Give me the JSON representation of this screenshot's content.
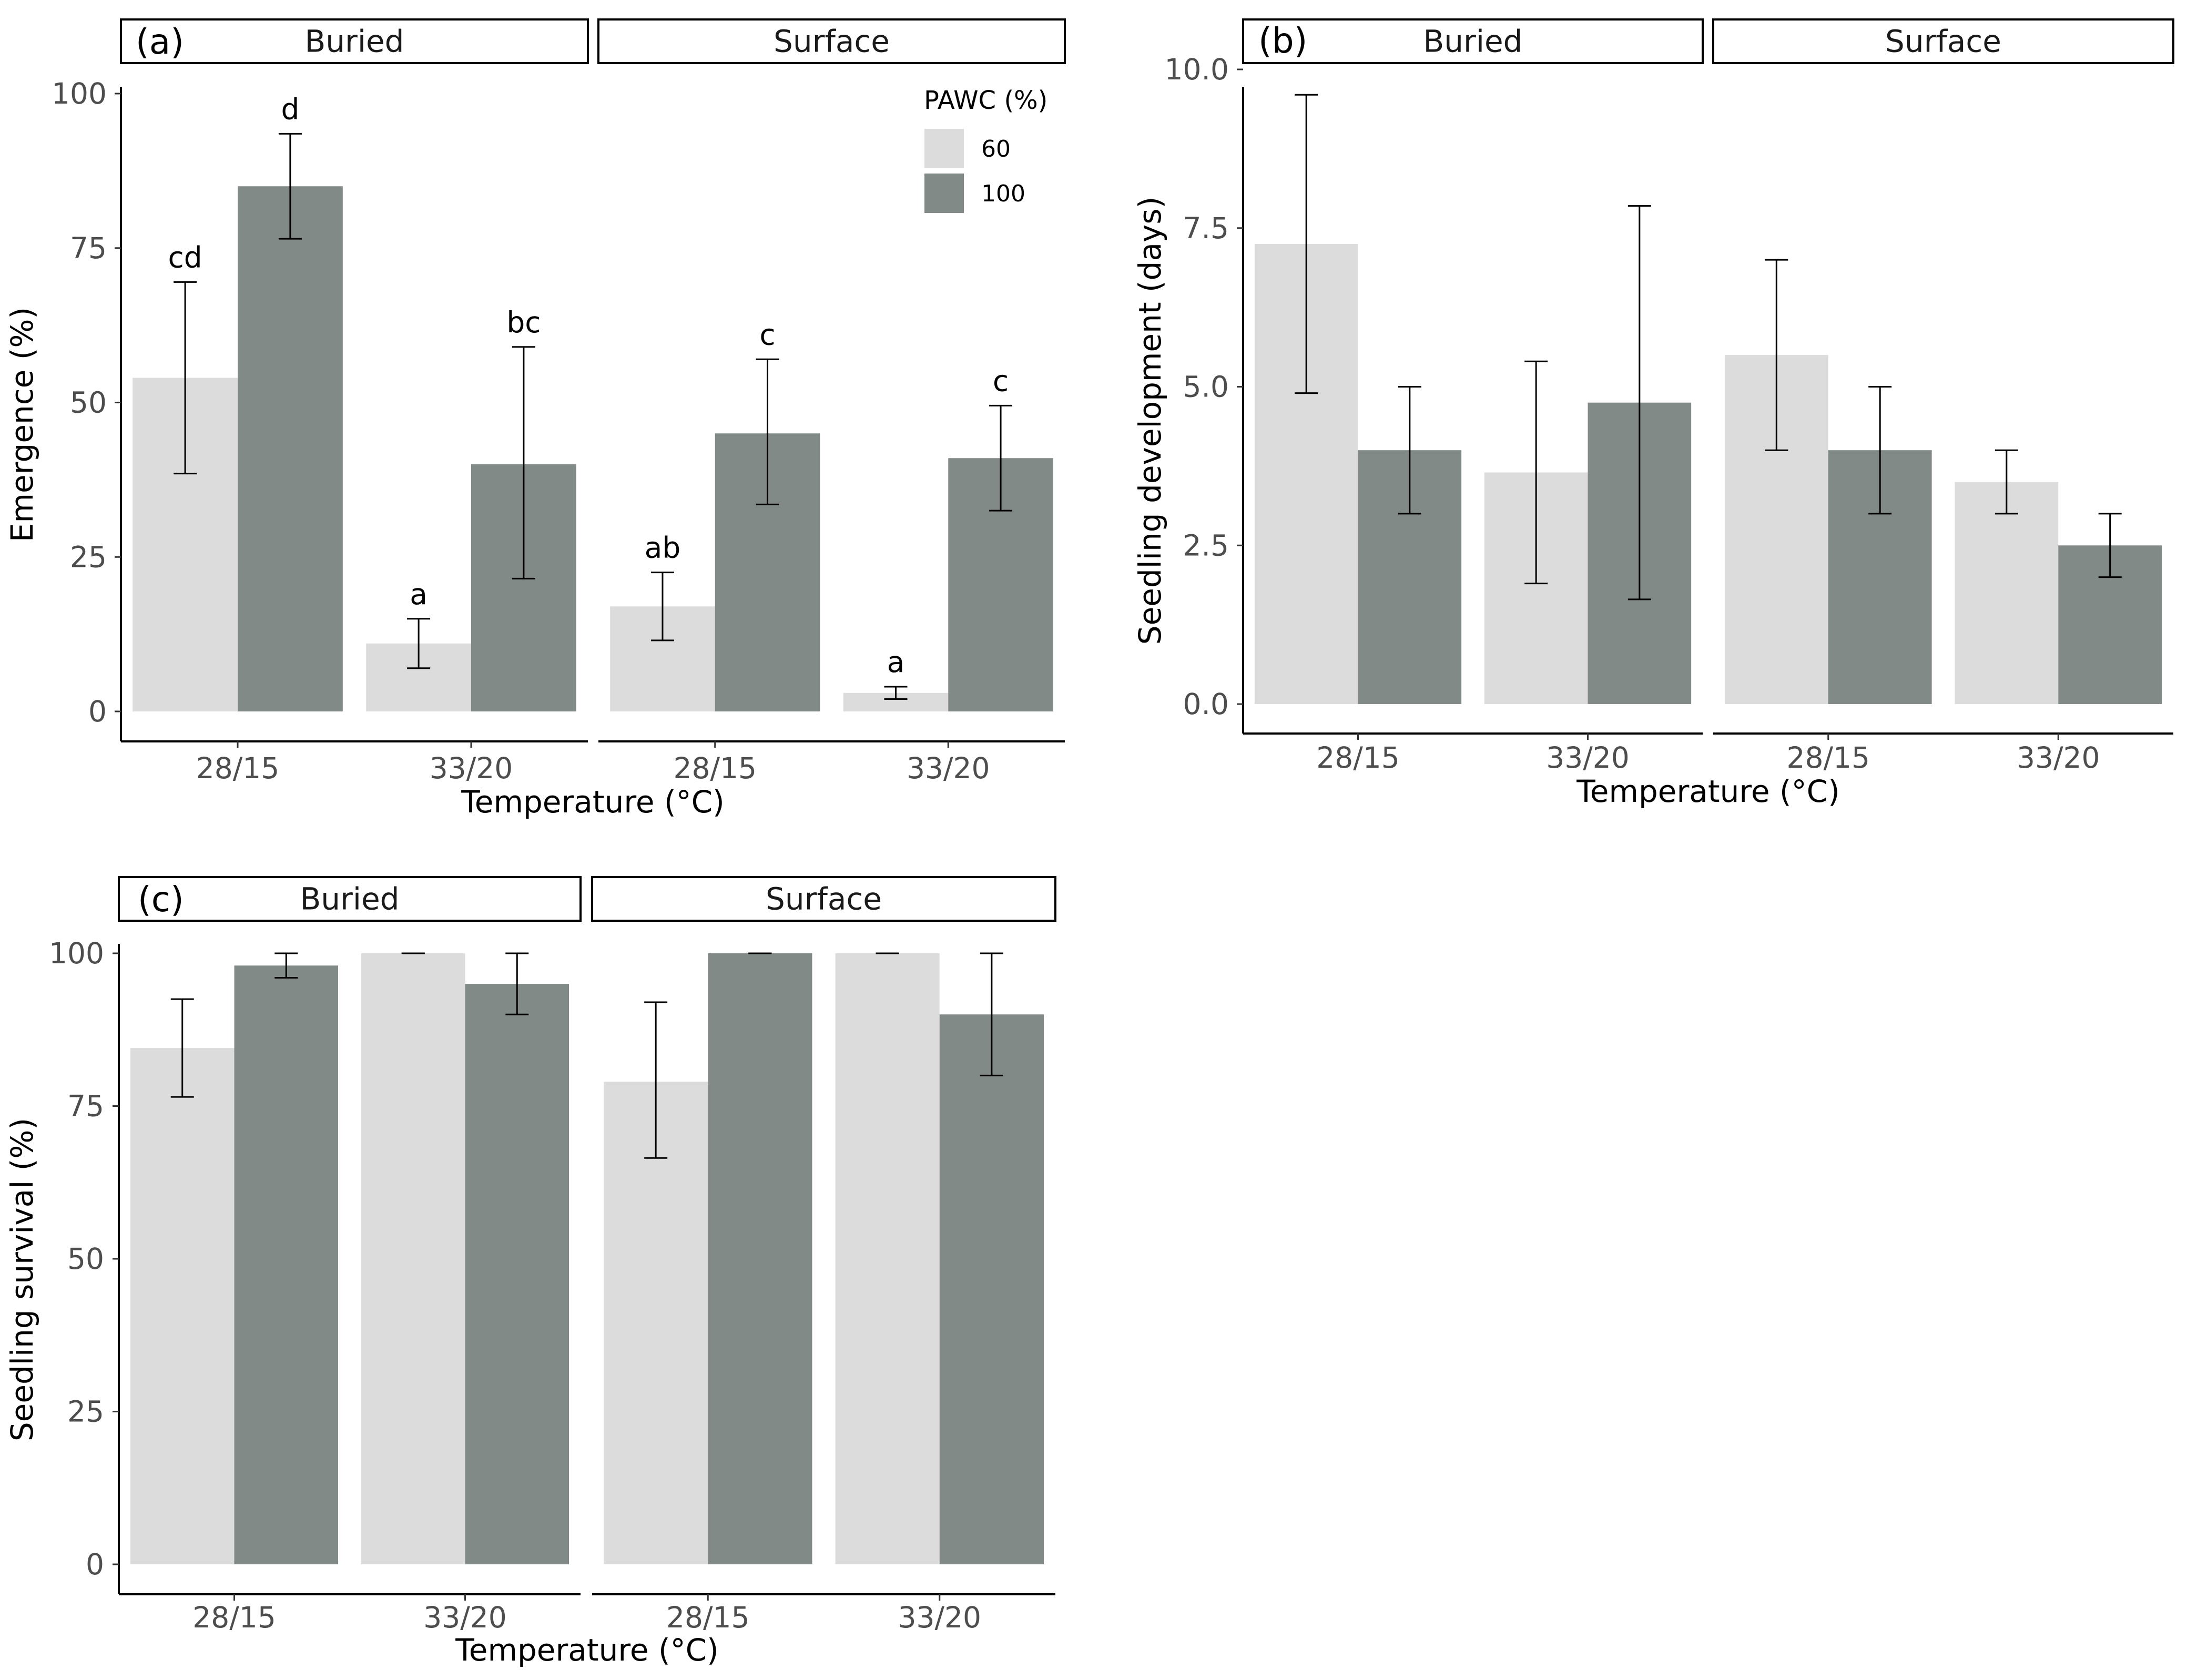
{
  "palette": {
    "pawc_60": "#dcdcdc",
    "pawc_100": "#828a88",
    "error_bar": "#000000",
    "axis": "#000000"
  },
  "legend": {
    "title": "PAWC (%)",
    "items": [
      {
        "label": "60",
        "color": "#dcdcdc"
      },
      {
        "label": "100",
        "color": "#828a88"
      }
    ]
  },
  "chart_data": [
    {
      "type": "bar",
      "tag": "(a)",
      "ylabel": "Emergence (%)",
      "xlabel": "Temperature (°C)",
      "ylim": [
        0,
        105
      ],
      "yticks": [
        "0",
        "25",
        "50",
        "75",
        "100"
      ],
      "categories": [
        "28/15",
        "33/20"
      ],
      "facets": [
        {
          "name": "Buried",
          "series": [
            {
              "name": "60",
              "values": [
                54,
                11
              ],
              "err_low": [
                38.5,
                7
              ],
              "err_high": [
                69.5,
                15
              ],
              "letters": [
                "cd",
                "a"
              ]
            },
            {
              "name": "100",
              "values": [
                85,
                40
              ],
              "err_low": [
                76.5,
                21.5
              ],
              "err_high": [
                93.5,
                59
              ],
              "letters": [
                "d",
                "bc"
              ]
            }
          ]
        },
        {
          "name": "Surface",
          "series": [
            {
              "name": "60",
              "values": [
                17,
                3
              ],
              "err_low": [
                11.5,
                2
              ],
              "err_high": [
                22.5,
                4
              ],
              "letters": [
                "ab",
                "a"
              ]
            },
            {
              "name": "100",
              "values": [
                45,
                41
              ],
              "err_low": [
                33.5,
                32.5
              ],
              "err_high": [
                57,
                49.5
              ],
              "letters": [
                "c",
                "c"
              ]
            }
          ]
        }
      ],
      "legend": true
    },
    {
      "type": "bar",
      "tag": "(b)",
      "ylabel": "Seedling development (days)",
      "xlabel": "Temperature (°C)",
      "ylim": [
        0,
        10.5
      ],
      "yticks": [
        "0.0",
        "2.5",
        "5.0",
        "7.5",
        "10.0"
      ],
      "categories": [
        "28/15",
        "33/20"
      ],
      "facets": [
        {
          "name": "Buried",
          "series": [
            {
              "name": "60",
              "values": [
                7.25,
                3.65
              ],
              "err_low": [
                4.9,
                1.9
              ],
              "err_high": [
                9.6,
                5.4
              ]
            },
            {
              "name": "100",
              "values": [
                4.0,
                4.75
              ],
              "err_low": [
                3.0,
                1.65
              ],
              "err_high": [
                5.0,
                7.85
              ]
            }
          ]
        },
        {
          "name": "Surface",
          "series": [
            {
              "name": "60",
              "values": [
                5.5,
                3.5
              ],
              "err_low": [
                4.0,
                3.0
              ],
              "err_high": [
                7.0,
                4.0
              ]
            },
            {
              "name": "100",
              "values": [
                4.0,
                2.5
              ],
              "err_low": [
                3.0,
                2.0
              ],
              "err_high": [
                5.0,
                3.0
              ]
            }
          ]
        }
      ],
      "legend": false
    },
    {
      "type": "bar",
      "tag": "(c)",
      "ylabel": "Seedling survival (%)",
      "xlabel": "Temperature (°C)",
      "ylim": [
        0,
        105
      ],
      "yticks": [
        "0",
        "25",
        "50",
        "75",
        "100"
      ],
      "categories": [
        "28/15",
        "33/20"
      ],
      "facets": [
        {
          "name": "Buried",
          "series": [
            {
              "name": "60",
              "values": [
                84.5,
                100
              ],
              "err_low": [
                76.5,
                100
              ],
              "err_high": [
                92.5,
                100
              ]
            },
            {
              "name": "100",
              "values": [
                98,
                95
              ],
              "err_low": [
                96,
                90
              ],
              "err_high": [
                100,
                100
              ]
            }
          ]
        },
        {
          "name": "Surface",
          "series": [
            {
              "name": "60",
              "values": [
                79,
                100
              ],
              "err_low": [
                66.5,
                100
              ],
              "err_high": [
                92,
                100
              ]
            },
            {
              "name": "100",
              "values": [
                100,
                90
              ],
              "err_low": [
                100,
                80
              ],
              "err_high": [
                100,
                100
              ]
            }
          ]
        }
      ],
      "legend": false
    }
  ]
}
